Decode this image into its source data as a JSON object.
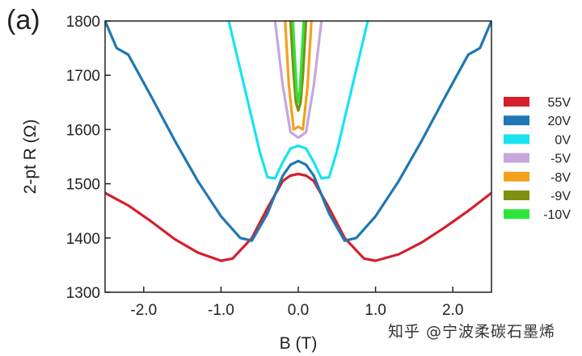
{
  "panel_label": "(a)",
  "watermark": "知乎 @宁波柔碳石墨烯",
  "chart_data": {
    "type": "line",
    "title": "",
    "xlabel": "B (T)",
    "ylabel": "2-pt R (Ω)",
    "xlim": [
      -2.5,
      2.5
    ],
    "ylim": [
      1300,
      1800
    ],
    "xticks": [
      -2.0,
      -1.0,
      0.0,
      1.0,
      2.0
    ],
    "xtick_labels": [
      "-2.0",
      "-1.0",
      "0.0",
      "1.0",
      "2.0"
    ],
    "yticks": [
      1300,
      1400,
      1500,
      1600,
      1700,
      1800
    ],
    "ytick_labels": [
      "1300",
      "1400",
      "1500",
      "1600",
      "1700",
      "1800"
    ],
    "grid": false,
    "legend_position": "right",
    "series": [
      {
        "name": "55V",
        "color": "#d4202a",
        "x": [
          -2.5,
          -2.2,
          -1.9,
          -1.6,
          -1.3,
          -1.0,
          -0.85,
          -0.6,
          -0.4,
          -0.2,
          -0.1,
          0.0,
          0.1,
          0.2,
          0.4,
          0.6,
          0.85,
          1.0,
          1.3,
          1.6,
          1.9,
          2.2,
          2.5
        ],
        "y": [
          1483,
          1460,
          1430,
          1398,
          1373,
          1358,
          1362,
          1400,
          1455,
          1505,
          1515,
          1518,
          1515,
          1505,
          1455,
          1400,
          1362,
          1358,
          1370,
          1392,
          1420,
          1450,
          1483
        ]
      },
      {
        "name": "20V",
        "color": "#1f77b4",
        "x": [
          -2.5,
          -2.35,
          -2.2,
          -1.9,
          -1.6,
          -1.3,
          -1.0,
          -0.75,
          -0.6,
          -0.4,
          -0.2,
          -0.1,
          0.0,
          0.1,
          0.2,
          0.4,
          0.6,
          0.75,
          1.0,
          1.3,
          1.6,
          1.9,
          2.2,
          2.35,
          2.5
        ],
        "y": [
          1800,
          1750,
          1738,
          1660,
          1580,
          1505,
          1440,
          1400,
          1395,
          1445,
          1515,
          1535,
          1542,
          1535,
          1515,
          1445,
          1395,
          1400,
          1440,
          1505,
          1580,
          1660,
          1738,
          1750,
          1800
        ]
      },
      {
        "name": "0V",
        "color": "#19e3ef",
        "x": [
          -0.9,
          -0.7,
          -0.5,
          -0.4,
          -0.3,
          -0.2,
          -0.1,
          0.0,
          0.1,
          0.2,
          0.3,
          0.4,
          0.5,
          0.7,
          0.9
        ],
        "y": [
          1800,
          1680,
          1560,
          1512,
          1510,
          1540,
          1565,
          1570,
          1565,
          1540,
          1510,
          1512,
          1560,
          1680,
          1800
        ]
      },
      {
        "name": "-5V",
        "color": "#c5a7dd",
        "x": [
          -0.3,
          -0.2,
          -0.1,
          0.0,
          0.1,
          0.2,
          0.3
        ],
        "y": [
          1800,
          1680,
          1595,
          1585,
          1595,
          1680,
          1800
        ]
      },
      {
        "name": "-8V",
        "color": "#f2a11c",
        "x": [
          -0.17,
          -0.12,
          -0.06,
          0.0,
          0.06,
          0.12,
          0.17
        ],
        "y": [
          1800,
          1680,
          1600,
          1605,
          1600,
          1680,
          1800
        ]
      },
      {
        "name": "-9V",
        "color": "#7f8f10",
        "x": [
          -0.1,
          -0.06,
          -0.03,
          0.0,
          0.03,
          0.06,
          0.1
        ],
        "y": [
          1800,
          1700,
          1650,
          1635,
          1650,
          1700,
          1800
        ]
      },
      {
        "name": "-10V",
        "color": "#2ee63b",
        "x": [
          -0.07,
          -0.04,
          -0.02,
          0.0,
          0.02,
          0.04,
          0.07
        ],
        "y": [
          1800,
          1720,
          1670,
          1650,
          1670,
          1720,
          1800
        ]
      }
    ]
  }
}
